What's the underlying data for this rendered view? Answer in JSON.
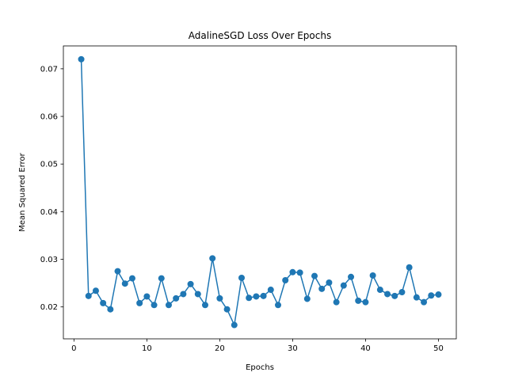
{
  "chart_data": {
    "type": "line",
    "title": "AdalineSGD Loss Over Epochs",
    "xlabel": "Epochs",
    "ylabel": "Mean Squared Error",
    "xlim": [
      -1.45,
      52.45
    ],
    "ylim": [
      0.0133,
      0.0748
    ],
    "xticks": [
      0,
      10,
      20,
      30,
      40,
      50
    ],
    "yticks": [
      0.02,
      0.03,
      0.04,
      0.05,
      0.06,
      0.07
    ],
    "ytick_labels": [
      "0.02",
      "0.03",
      "0.04",
      "0.05",
      "0.06",
      "0.07"
    ],
    "grid": false,
    "markers": true,
    "colors": {
      "series": "#1f77b4"
    },
    "series": [
      {
        "x": [
          1,
          2,
          3,
          4,
          5,
          6,
          7,
          8,
          9,
          10,
          11,
          12,
          13,
          14,
          15,
          16,
          17,
          18,
          19,
          20,
          21,
          22,
          23,
          24,
          25,
          26,
          27,
          28,
          29,
          30,
          31,
          32,
          33,
          34,
          35,
          36,
          37,
          38,
          39,
          40,
          41,
          42,
          43,
          44,
          45,
          46,
          47,
          48,
          49,
          50
        ],
        "values": [
          0.072,
          0.0223,
          0.0234,
          0.0208,
          0.0195,
          0.0275,
          0.0249,
          0.026,
          0.0208,
          0.0222,
          0.0204,
          0.026,
          0.0204,
          0.0218,
          0.0227,
          0.0248,
          0.0227,
          0.0204,
          0.0302,
          0.0218,
          0.0195,
          0.0162,
          0.0261,
          0.0219,
          0.0222,
          0.0223,
          0.0236,
          0.0204,
          0.0256,
          0.0273,
          0.0272,
          0.0217,
          0.0265,
          0.0238,
          0.0251,
          0.021,
          0.0245,
          0.0263,
          0.0213,
          0.021,
          0.0266,
          0.0236,
          0.0227,
          0.0223,
          0.0231,
          0.0283,
          0.022,
          0.021,
          0.0224,
          0.0226
        ]
      }
    ]
  }
}
